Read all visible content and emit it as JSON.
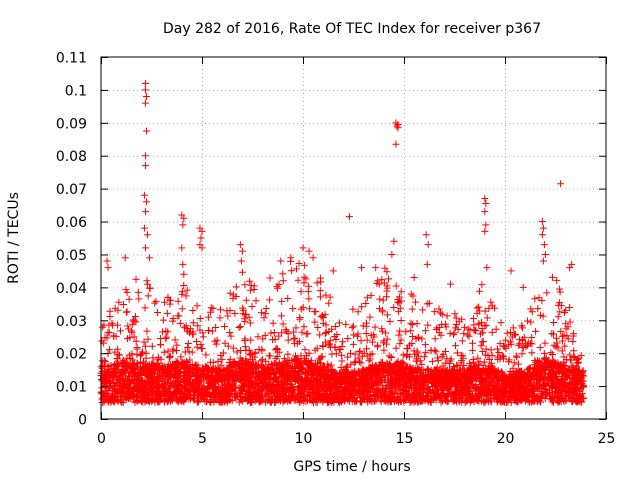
{
  "chart_data": {
    "type": "scatter",
    "title": "Day 282 of 2016, Rate Of TEC Index for receiver p367",
    "xlabel": "GPS time / hours",
    "ylabel": "ROTI / TECUs",
    "xlim": [
      0,
      25
    ],
    "ylim": [
      0,
      0.11
    ],
    "xticks": [
      0,
      5,
      10,
      15,
      20,
      25
    ],
    "xtick_labels": [
      "0",
      "5",
      "10",
      "15",
      "20",
      "25"
    ],
    "yticks": [
      0,
      0.01,
      0.02,
      0.03,
      0.04,
      0.05,
      0.06,
      0.07,
      0.08,
      0.09,
      0.1,
      0.11
    ],
    "ytick_labels": [
      "0",
      "0.01",
      "0.02",
      "0.03",
      "0.04",
      "0.05",
      "0.06",
      "0.07",
      "0.08",
      "0.09",
      "0.1",
      "0.11"
    ],
    "grid": true,
    "marker": "+",
    "color": "#ff0000",
    "data_range": [
      0,
      23.9
    ],
    "baseline": {
      "x": [
        0,
        1,
        2,
        3,
        4,
        5,
        6,
        7,
        8,
        9,
        10,
        11,
        12,
        13,
        14,
        15,
        16,
        17,
        18,
        19,
        20,
        21,
        22,
        23,
        23.9
      ],
      "typical": [
        0.013,
        0.014,
        0.014,
        0.013,
        0.014,
        0.013,
        0.012,
        0.015,
        0.013,
        0.014,
        0.015,
        0.013,
        0.011,
        0.012,
        0.014,
        0.013,
        0.012,
        0.012,
        0.012,
        0.014,
        0.011,
        0.012,
        0.015,
        0.013,
        0.012
      ],
      "upper_envelope": [
        0.03,
        0.042,
        0.045,
        0.036,
        0.042,
        0.034,
        0.034,
        0.045,
        0.04,
        0.048,
        0.05,
        0.042,
        0.03,
        0.04,
        0.047,
        0.038,
        0.04,
        0.032,
        0.035,
        0.044,
        0.028,
        0.03,
        0.05,
        0.038,
        0.025
      ]
    },
    "notable_points": [
      {
        "x": 2.2,
        "y": 0.102
      },
      {
        "x": 2.2,
        "y": 0.1
      },
      {
        "x": 2.25,
        "y": 0.098
      },
      {
        "x": 2.2,
        "y": 0.096
      },
      {
        "x": 2.25,
        "y": 0.0875
      },
      {
        "x": 2.2,
        "y": 0.08
      },
      {
        "x": 2.2,
        "y": 0.077
      },
      {
        "x": 2.15,
        "y": 0.068
      },
      {
        "x": 2.25,
        "y": 0.066
      },
      {
        "x": 2.2,
        "y": 0.063
      },
      {
        "x": 2.15,
        "y": 0.058
      },
      {
        "x": 2.3,
        "y": 0.056
      },
      {
        "x": 2.2,
        "y": 0.052
      },
      {
        "x": 2.4,
        "y": 0.049
      },
      {
        "x": 4.0,
        "y": 0.062
      },
      {
        "x": 4.1,
        "y": 0.061
      },
      {
        "x": 4.05,
        "y": 0.059
      },
      {
        "x": 4.0,
        "y": 0.052
      },
      {
        "x": 4.05,
        "y": 0.047
      },
      {
        "x": 4.1,
        "y": 0.044
      },
      {
        "x": 4.9,
        "y": 0.058
      },
      {
        "x": 5.0,
        "y": 0.057
      },
      {
        "x": 4.95,
        "y": 0.055
      },
      {
        "x": 4.9,
        "y": 0.053
      },
      {
        "x": 5.0,
        "y": 0.052
      },
      {
        "x": 6.9,
        "y": 0.053
      },
      {
        "x": 7.0,
        "y": 0.051
      },
      {
        "x": 6.95,
        "y": 0.048
      },
      {
        "x": 10.0,
        "y": 0.052
      },
      {
        "x": 10.3,
        "y": 0.051
      },
      {
        "x": 10.5,
        "y": 0.049
      },
      {
        "x": 12.3,
        "y": 0.0615
      },
      {
        "x": 14.6,
        "y": 0.09
      },
      {
        "x": 14.7,
        "y": 0.0895
      },
      {
        "x": 14.65,
        "y": 0.089
      },
      {
        "x": 14.7,
        "y": 0.0885
      },
      {
        "x": 14.6,
        "y": 0.0835
      },
      {
        "x": 14.5,
        "y": 0.054
      },
      {
        "x": 14.4,
        "y": 0.05
      },
      {
        "x": 16.1,
        "y": 0.056
      },
      {
        "x": 16.2,
        "y": 0.053
      },
      {
        "x": 16.15,
        "y": 0.047
      },
      {
        "x": 19.0,
        "y": 0.067
      },
      {
        "x": 19.05,
        "y": 0.0655
      },
      {
        "x": 19.0,
        "y": 0.063
      },
      {
        "x": 19.05,
        "y": 0.059
      },
      {
        "x": 19.0,
        "y": 0.057
      },
      {
        "x": 19.1,
        "y": 0.046
      },
      {
        "x": 21.85,
        "y": 0.06
      },
      {
        "x": 21.9,
        "y": 0.058
      },
      {
        "x": 21.85,
        "y": 0.056
      },
      {
        "x": 21.95,
        "y": 0.053
      },
      {
        "x": 22.0,
        "y": 0.05
      },
      {
        "x": 21.9,
        "y": 0.048
      },
      {
        "x": 22.75,
        "y": 0.0715
      },
      {
        "x": 23.3,
        "y": 0.047
      },
      {
        "x": 23.2,
        "y": 0.046
      },
      {
        "x": 0.3,
        "y": 0.048
      },
      {
        "x": 0.35,
        "y": 0.046
      },
      {
        "x": 1.2,
        "y": 0.049
      },
      {
        "x": 8.9,
        "y": 0.048
      },
      {
        "x": 9.4,
        "y": 0.049
      },
      {
        "x": 11.5,
        "y": 0.045
      },
      {
        "x": 12.9,
        "y": 0.046
      },
      {
        "x": 13.6,
        "y": 0.046
      },
      {
        "x": 15.5,
        "y": 0.043
      },
      {
        "x": 17.3,
        "y": 0.041
      },
      {
        "x": 20.3,
        "y": 0.045
      },
      {
        "x": 20.9,
        "y": 0.04
      }
    ]
  }
}
